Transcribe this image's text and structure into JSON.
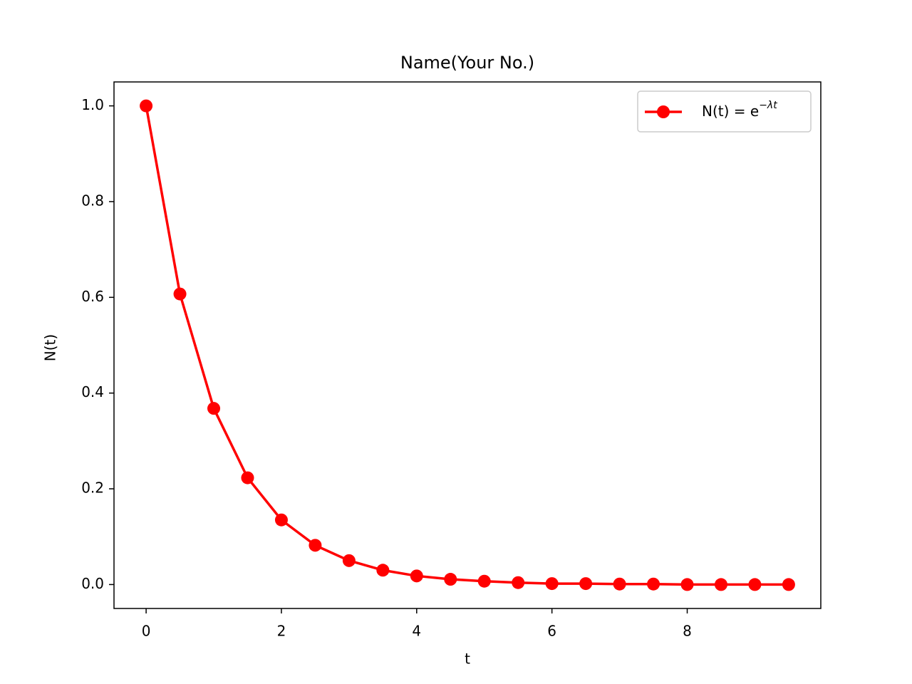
{
  "chart_data": {
    "type": "line",
    "title": "Name(Your No.)",
    "x_label": "t",
    "y_label": "N(t)",
    "series": [
      {
        "name": "N(t) = e−λt",
        "color": "#ff0000",
        "x": [
          0,
          0.5,
          1,
          1.5,
          2,
          2.5,
          3,
          3.5,
          4,
          4.5,
          5,
          5.5,
          6,
          6.5,
          7,
          7.5,
          8,
          8.5,
          9,
          9.5
        ],
        "values": [
          1.0,
          0.607,
          0.368,
          0.223,
          0.135,
          0.082,
          0.05,
          0.03,
          0.018,
          0.011,
          0.007,
          0.004,
          0.002,
          0.002,
          0.001,
          0.001,
          0.0,
          0.0,
          0.0,
          0.0
        ]
      }
    ],
    "xlim": [
      -0.475,
      9.975
    ],
    "ylim": [
      -0.05,
      1.05
    ],
    "xticks": [
      0,
      2,
      4,
      6,
      8
    ],
    "yticks": [
      {
        "value": 0,
        "label": "0.0"
      },
      0.2,
      0.4,
      0.6,
      0.8,
      {
        "value": 1,
        "label": "1.0"
      }
    ],
    "grid": false,
    "legend": "upper right"
  }
}
